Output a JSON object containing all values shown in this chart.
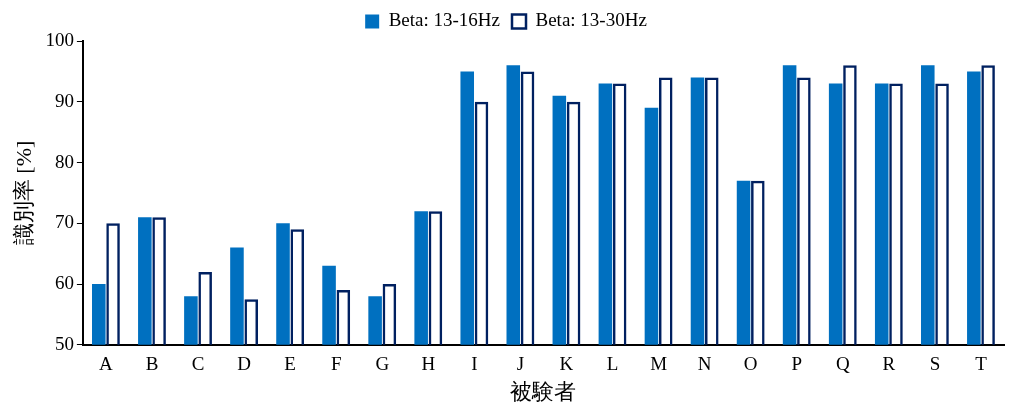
{
  "chart_data": {
    "type": "bar",
    "categories": [
      "A",
      "B",
      "C",
      "D",
      "E",
      "F",
      "G",
      "H",
      "I",
      "J",
      "K",
      "L",
      "M",
      "N",
      "O",
      "P",
      "Q",
      "R",
      "S",
      "T"
    ],
    "series": [
      {
        "name": "Beta: 13-16Hz",
        "color": "#0070c0",
        "values": [
          60,
          71,
          58,
          66,
          70,
          63,
          58,
          72,
          95,
          96,
          91,
          93,
          89,
          94,
          77,
          96,
          93,
          93,
          96,
          95
        ]
      },
      {
        "name": "Beta: 13-30Hz",
        "color": "#002060",
        "values": [
          70,
          71,
          62,
          57.5,
          69,
          59,
          60,
          72,
          90,
          95,
          90,
          93,
          94,
          94,
          77,
          94,
          96,
          93,
          93,
          96
        ]
      }
    ],
    "xlabel": "被験者",
    "ylabel": "識別率 [%]",
    "ylim": [
      50,
      100
    ],
    "yticks": [
      50,
      60,
      70,
      80,
      90,
      100
    ],
    "grid": false,
    "legend": "top"
  }
}
